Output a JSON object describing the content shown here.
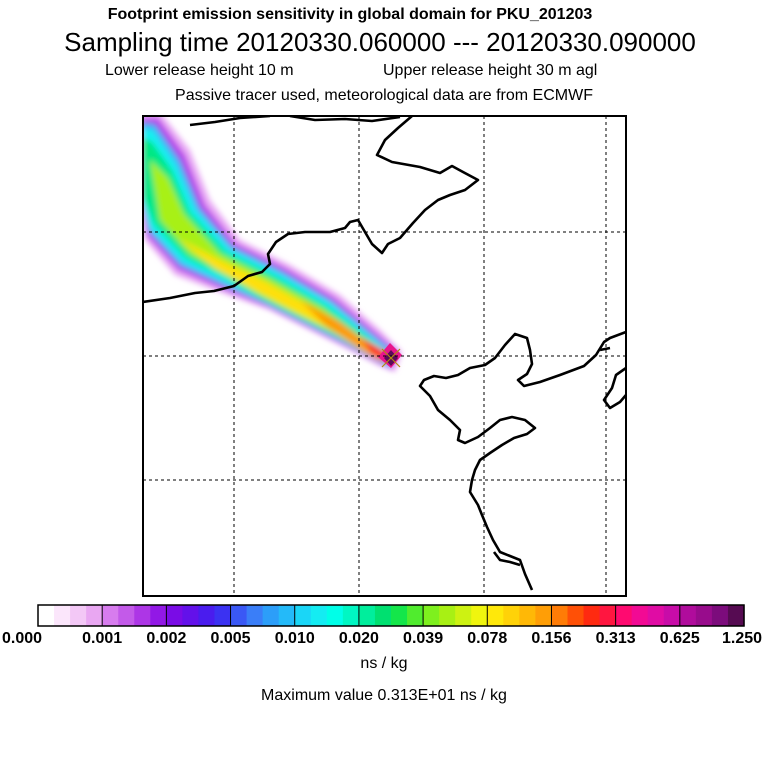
{
  "header": {
    "line1": "Footprint emission sensitivity in global domain for PKU_201203",
    "line2": "Sampling time   20120330.060000 --- 20120330.090000",
    "line3a": "Lower release height   10 m",
    "line3b": "Upper release height   30 m    agl",
    "line4": "Passive tracer used, meteorological data are from ECMWF"
  },
  "colorbar": {
    "ticks": [
      "0.000",
      "0.001",
      "0.002",
      "0.005",
      "0.010",
      "0.020",
      "0.039",
      "0.078",
      "0.156",
      "0.313",
      "0.625",
      "1.250"
    ],
    "colors": [
      "#ffffff",
      "#fbe6fb",
      "#f3c8f6",
      "#e9a7f2",
      "#d77cee",
      "#c35ae9",
      "#ad36e6",
      "#9218e6",
      "#7a0ce6",
      "#6311ea",
      "#4a1cee",
      "#3b32f2",
      "#3a58f5",
      "#3a7ef8",
      "#2c9ef9",
      "#24baf9",
      "#1ad6f7",
      "#14ecf2",
      "#00ffe8",
      "#00f7c3",
      "#00ee9c",
      "#00e070",
      "#14e64a",
      "#50ec2e",
      "#7ef01e",
      "#a8f014",
      "#cdf212",
      "#f0f50e",
      "#ffe80a",
      "#ffd208",
      "#ffb806",
      "#ff9e06",
      "#ff7c06",
      "#ff5006",
      "#ff2a10",
      "#ff1640",
      "#ff0a70",
      "#f20a94",
      "#e00ca4",
      "#c80ca8",
      "#b00c9c",
      "#980c8c",
      "#7c0c7c",
      "#560b52"
    ],
    "units": "ns / kg"
  },
  "footer": {
    "max_value": "Maximum value  0.313E+01 ns / kg"
  },
  "map": {
    "plume_colors": {
      "outer": "#e8a8f4",
      "edge": "#b436e8",
      "blue": "#3ab0f6",
      "cyan": "#12f0f0",
      "green": "#00e884",
      "lime": "#a8f014",
      "yellow": "#ffe010",
      "orange": "#ff9a06",
      "red": "#ff2a20",
      "magenta": "#e8148c",
      "purple": "#5a0a5a"
    },
    "grid_color": "#000000",
    "coast_color": "#000000"
  }
}
